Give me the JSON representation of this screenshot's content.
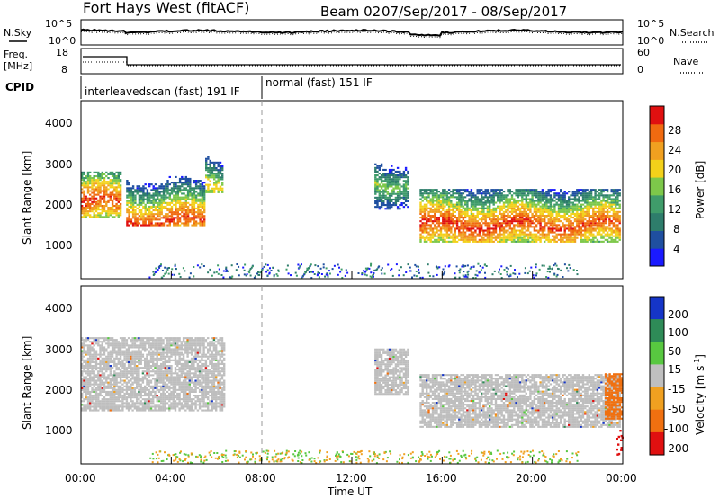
{
  "header": {
    "station": "Fort Hays West (fitACF)",
    "beam": "Beam 02",
    "date_range": "07/Sep/2017 - 08/Sep/2017"
  },
  "noise_panel": {
    "left_label": "N.Sky",
    "right_label": "N.Search",
    "left_ticks": [
      "10^5",
      "10^0"
    ],
    "right_ticks": [
      "10^5",
      "10^0"
    ]
  },
  "freq_panel": {
    "left_label_line1": "Freq.",
    "left_label_line2": "[MHz]",
    "right_label": "Nave",
    "left_ticks": [
      "18",
      "8"
    ],
    "right_ticks": [
      "60",
      "0"
    ]
  },
  "cpid_panel": {
    "label": "CPID",
    "modes": [
      "interleavedscan (fast) 191 IF",
      "normal (fast) 151 IF"
    ]
  },
  "power_panel": {
    "ylabel": "Slant Range [km]",
    "yticks": [
      "4000",
      "3000",
      "2000",
      "1000"
    ],
    "colorbar_label": "Power [dB]",
    "colorbar_ticks": [
      "28",
      "24",
      "20",
      "16",
      "12",
      "8",
      "4"
    ]
  },
  "velocity_panel": {
    "ylabel": "Slant Range [km]",
    "yticks": [
      "4000",
      "3000",
      "2000",
      "1000"
    ],
    "colorbar_label_main": "Velocity [m s",
    "colorbar_label_sup": "-1",
    "colorbar_label_end": "]",
    "colorbar_ticks": [
      "200",
      "100",
      "50",
      "15",
      "-15",
      "-50",
      "-100",
      "-200"
    ]
  },
  "xaxis": {
    "label": "Time UT",
    "ticks": [
      "00:00",
      "04:00",
      "08:00",
      "12:00",
      "16:00",
      "20:00",
      "00:00"
    ]
  },
  "colors": {
    "power_scale": [
      "#1a1aff",
      "#1f4fa0",
      "#2e7d6b",
      "#3f9c6a",
      "#7dc84a",
      "#f3d11a",
      "#f0a020",
      "#f06a10",
      "#e01010"
    ],
    "velocity_scale": [
      "#1535c8",
      "#2e8b57",
      "#58c840",
      "#bfbfbf",
      "#f0a020",
      "#f07010",
      "#e01010"
    ],
    "ground_scatter": "#bebebe"
  },
  "chart_data": [
    {
      "type": "heatmap",
      "title": "Power",
      "x_range_hours": [
        0,
        24
      ],
      "y_range_km": [
        180,
        4500
      ],
      "regions": [
        {
          "t0": 0.0,
          "t1": 1.8,
          "r0": 1700,
          "r1": 2800,
          "peak_km": 2050,
          "peak_db": 28
        },
        {
          "t0": 2.0,
          "t1": 5.5,
          "r0": 1500,
          "r1": 2700,
          "peak_km": 1600,
          "peak_db": 28
        },
        {
          "t0": 5.5,
          "t1": 6.3,
          "r0": 2300,
          "r1": 3300,
          "peak_km": 2500,
          "peak_db": 20
        },
        {
          "t0": 13.0,
          "t1": 14.5,
          "r0": 1900,
          "r1": 3000,
          "peak_km": 2500,
          "peak_db": 16
        },
        {
          "t0": 15.0,
          "t1": 23.9,
          "r0": 1100,
          "r1": 2400,
          "peak_km": 1500,
          "peak_db": 28
        }
      ]
    },
    {
      "type": "heatmap",
      "title": "Velocity",
      "x_range_hours": [
        0,
        24
      ],
      "y_range_km": [
        180,
        4500
      ],
      "regions": [
        {
          "t0": 0.0,
          "t1": 6.3,
          "r0": 1500,
          "r1": 3300,
          "velocity_ms": 0,
          "ground_scatter": true
        },
        {
          "t0": 13.0,
          "t1": 14.5,
          "r0": 1900,
          "r1": 3000,
          "velocity_ms": 0,
          "ground_scatter": true
        },
        {
          "t0": 15.0,
          "t1": 23.9,
          "r0": 1100,
          "r1": 2400,
          "velocity_ms": 0,
          "ground_scatter": true
        },
        {
          "t0": 23.2,
          "t1": 24.0,
          "r0": 1300,
          "r1": 2400,
          "velocity_ms": -80
        }
      ]
    }
  ]
}
